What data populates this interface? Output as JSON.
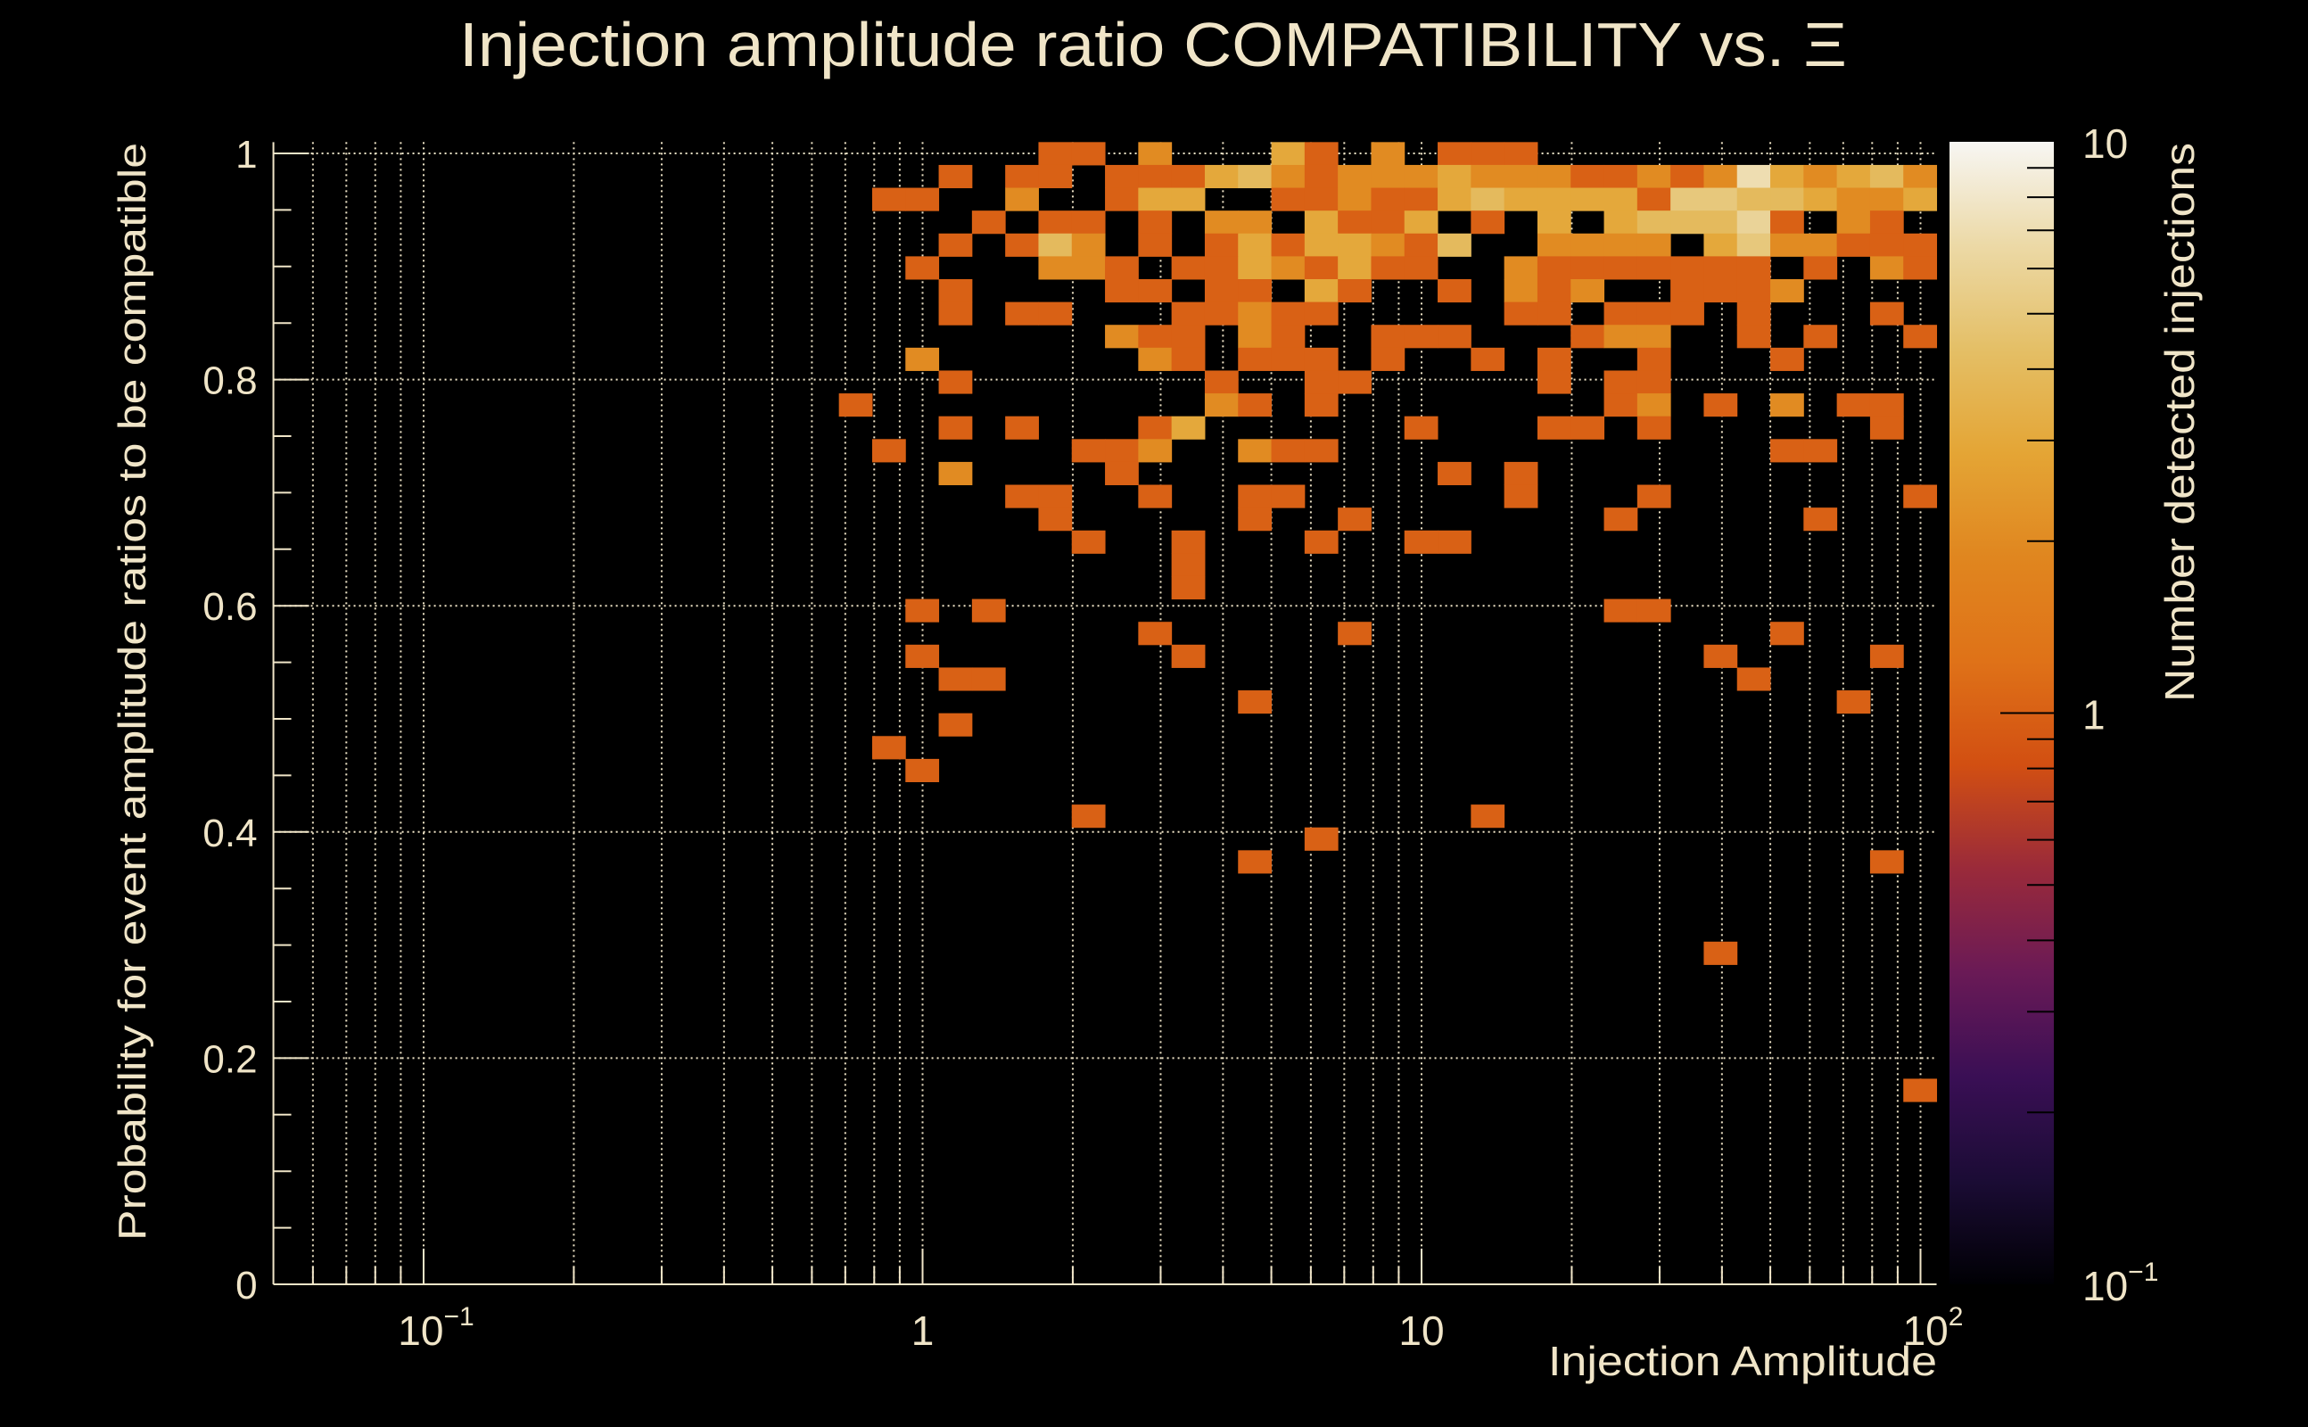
{
  "chart_data": {
    "type": "heatmap",
    "title": "Injection amplitude ratio COMPATIBILITY vs.  Ξ",
    "xlabel": "Injection Amplitude",
    "ylabel": "Probability for event amplitude ratios to be compatible",
    "zlabel": "Number detected injections",
    "x_scale": "log",
    "xlim": [
      0.05,
      107.7
    ],
    "ylim": [
      0,
      1.01
    ],
    "z_scale": "log",
    "zlim": [
      0.1,
      10
    ],
    "grid": true,
    "x_bins": {
      "count": 50,
      "min": 0.05,
      "max": 107.7,
      "spacing": "log"
    },
    "y_bins": {
      "count": 50,
      "min": 0,
      "max": 1.01,
      "spacing": "linear"
    },
    "x_ticks": [
      {
        "value": 0.1,
        "base": "10",
        "exp": "−1"
      },
      {
        "value": 1,
        "base": "1",
        "exp": ""
      },
      {
        "value": 10,
        "base": "10",
        "exp": ""
      },
      {
        "value": 100,
        "base": "10",
        "exp": "2"
      }
    ],
    "y_ticks": [
      {
        "value": 0,
        "label": "0"
      },
      {
        "value": 0.2,
        "label": "0.2"
      },
      {
        "value": 0.4,
        "label": "0.4"
      },
      {
        "value": 0.6,
        "label": "0.6"
      },
      {
        "value": 0.8,
        "label": "0.8"
      },
      {
        "value": 1,
        "label": "1"
      }
    ],
    "z_ticks": [
      {
        "value": 10,
        "base": "10",
        "exp": ""
      },
      {
        "value": 1,
        "base": "1",
        "exp": ""
      },
      {
        "value": 0.1,
        "base": "10",
        "exp": "−1"
      }
    ],
    "colormap": [
      "#000004",
      "#1b0c35",
      "#3a0f55",
      "#6a1a56",
      "#9a2a3a",
      "#d24f12",
      "#df7218",
      "#e0861f",
      "#e4a535",
      "#e4bf66",
      "#ecd9a6",
      "#f7f6f3"
    ],
    "cells_note": "rows indexed from top y-bin (row 0 = y 0.99-1.01); each entry [x_bin_index, count]",
    "rows": {
      "0": [
        [
          23,
          1
        ],
        [
          24,
          1
        ],
        [
          26,
          2
        ],
        [
          30,
          3
        ],
        [
          31,
          1
        ],
        [
          33,
          2
        ],
        [
          35,
          1
        ],
        [
          36,
          1
        ],
        [
          37,
          1
        ]
      ],
      "1": [
        [
          20,
          1
        ],
        [
          22,
          1
        ],
        [
          23,
          1
        ],
        [
          25,
          1
        ],
        [
          26,
          1
        ],
        [
          27,
          1
        ],
        [
          28,
          3
        ],
        [
          29,
          4
        ],
        [
          30,
          2
        ],
        [
          31,
          1
        ],
        [
          32,
          2
        ],
        [
          33,
          2
        ],
        [
          34,
          2
        ],
        [
          35,
          3
        ],
        [
          36,
          2
        ],
        [
          37,
          2
        ],
        [
          38,
          2
        ],
        [
          39,
          1
        ],
        [
          40,
          1
        ],
        [
          41,
          2
        ],
        [
          42,
          1
        ],
        [
          43,
          2
        ],
        [
          44,
          7
        ],
        [
          45,
          3
        ],
        [
          46,
          2
        ],
        [
          47,
          3
        ],
        [
          48,
          4
        ],
        [
          49,
          2
        ]
      ],
      "2": [
        [
          18,
          1
        ],
        [
          19,
          1
        ],
        [
          22,
          2
        ],
        [
          25,
          1
        ],
        [
          26,
          3
        ],
        [
          27,
          3
        ],
        [
          30,
          1
        ],
        [
          31,
          1
        ],
        [
          32,
          2
        ],
        [
          33,
          1
        ],
        [
          34,
          1
        ],
        [
          35,
          3
        ],
        [
          36,
          4
        ],
        [
          37,
          3
        ],
        [
          38,
          3
        ],
        [
          39,
          3
        ],
        [
          40,
          3
        ],
        [
          41,
          1
        ],
        [
          42,
          5
        ],
        [
          43,
          5
        ],
        [
          44,
          4
        ],
        [
          45,
          4
        ],
        [
          46,
          3
        ],
        [
          47,
          2
        ],
        [
          48,
          2
        ],
        [
          49,
          3
        ]
      ],
      "3": [
        [
          21,
          1
        ],
        [
          23,
          1
        ],
        [
          24,
          1
        ],
        [
          26,
          1
        ],
        [
          28,
          2
        ],
        [
          29,
          2
        ],
        [
          31,
          3
        ],
        [
          32,
          1
        ],
        [
          33,
          1
        ],
        [
          34,
          3
        ],
        [
          36,
          1
        ],
        [
          38,
          3
        ],
        [
          40,
          3
        ],
        [
          41,
          4
        ],
        [
          42,
          4
        ],
        [
          43,
          4
        ],
        [
          44,
          6
        ],
        [
          45,
          1
        ],
        [
          47,
          2
        ],
        [
          48,
          1
        ]
      ],
      "4": [
        [
          20,
          1
        ],
        [
          22,
          1
        ],
        [
          23,
          4
        ],
        [
          24,
          2
        ],
        [
          26,
          1
        ],
        [
          28,
          1
        ],
        [
          29,
          3
        ],
        [
          30,
          1
        ],
        [
          31,
          3
        ],
        [
          32,
          3
        ],
        [
          33,
          2
        ],
        [
          34,
          1
        ],
        [
          35,
          4
        ],
        [
          38,
          2
        ],
        [
          39,
          2
        ],
        [
          40,
          2
        ],
        [
          41,
          2
        ],
        [
          43,
          3
        ],
        [
          44,
          5
        ],
        [
          45,
          2
        ],
        [
          46,
          2
        ],
        [
          47,
          1
        ],
        [
          48,
          1
        ],
        [
          49,
          1
        ]
      ],
      "5": [
        [
          19,
          1
        ],
        [
          23,
          2
        ],
        [
          24,
          2
        ],
        [
          25,
          1
        ],
        [
          27,
          1
        ],
        [
          28,
          1
        ],
        [
          29,
          3
        ],
        [
          30,
          2
        ],
        [
          31,
          1
        ],
        [
          32,
          3
        ],
        [
          33,
          1
        ],
        [
          34,
          1
        ],
        [
          37,
          2
        ],
        [
          38,
          1
        ],
        [
          39,
          1
        ],
        [
          40,
          1
        ],
        [
          41,
          1
        ],
        [
          42,
          1
        ],
        [
          43,
          1
        ],
        [
          44,
          1
        ],
        [
          46,
          1
        ],
        [
          48,
          2
        ],
        [
          49,
          1
        ]
      ],
      "6": [
        [
          20,
          1
        ],
        [
          25,
          1
        ],
        [
          26,
          1
        ],
        [
          28,
          1
        ],
        [
          29,
          1
        ],
        [
          31,
          3
        ],
        [
          32,
          1
        ],
        [
          35,
          1
        ],
        [
          37,
          2
        ],
        [
          38,
          1
        ],
        [
          39,
          2
        ],
        [
          42,
          1
        ],
        [
          43,
          1
        ],
        [
          44,
          1
        ],
        [
          45,
          2
        ]
      ],
      "7": [
        [
          20,
          1
        ],
        [
          22,
          1
        ],
        [
          23,
          1
        ],
        [
          27,
          1
        ],
        [
          28,
          1
        ],
        [
          29,
          2
        ],
        [
          30,
          1
        ],
        [
          31,
          1
        ],
        [
          37,
          1
        ],
        [
          38,
          1
        ],
        [
          40,
          1
        ],
        [
          41,
          1
        ],
        [
          42,
          1
        ],
        [
          44,
          1
        ],
        [
          48,
          1
        ]
      ],
      "8": [
        [
          25,
          2
        ],
        [
          26,
          1
        ],
        [
          27,
          1
        ],
        [
          29,
          2
        ],
        [
          30,
          1
        ],
        [
          33,
          1
        ],
        [
          34,
          1
        ],
        [
          35,
          1
        ],
        [
          39,
          1
        ],
        [
          40,
          2
        ],
        [
          41,
          2
        ],
        [
          44,
          1
        ],
        [
          46,
          1
        ],
        [
          49,
          1
        ]
      ],
      "9": [
        [
          19,
          2
        ],
        [
          26,
          2
        ],
        [
          27,
          1
        ],
        [
          29,
          1
        ],
        [
          30,
          1
        ],
        [
          31,
          1
        ],
        [
          33,
          1
        ],
        [
          36,
          1
        ],
        [
          38,
          1
        ],
        [
          41,
          1
        ],
        [
          45,
          1
        ]
      ],
      "10": [
        [
          20,
          1
        ],
        [
          28,
          1
        ],
        [
          31,
          1
        ],
        [
          32,
          1
        ],
        [
          38,
          1
        ],
        [
          40,
          1
        ],
        [
          41,
          1
        ]
      ],
      "11": [
        [
          17,
          1
        ],
        [
          28,
          2
        ],
        [
          29,
          1
        ],
        [
          31,
          1
        ],
        [
          40,
          1
        ],
        [
          41,
          2
        ],
        [
          43,
          1
        ],
        [
          45,
          2
        ],
        [
          47,
          1
        ],
        [
          48,
          1
        ]
      ],
      "12": [
        [
          20,
          1
        ],
        [
          22,
          1
        ],
        [
          26,
          1
        ],
        [
          27,
          3
        ],
        [
          34,
          1
        ],
        [
          38,
          1
        ],
        [
          39,
          1
        ],
        [
          41,
          1
        ],
        [
          48,
          1
        ]
      ],
      "13": [
        [
          18,
          1
        ],
        [
          24,
          1
        ],
        [
          25,
          1
        ],
        [
          26,
          2
        ],
        [
          29,
          2
        ],
        [
          30,
          1
        ],
        [
          31,
          1
        ],
        [
          45,
          1
        ],
        [
          46,
          1
        ]
      ],
      "14": [
        [
          20,
          2
        ],
        [
          25,
          1
        ],
        [
          35,
          1
        ],
        [
          37,
          1
        ]
      ],
      "15": [
        [
          22,
          1
        ],
        [
          23,
          1
        ],
        [
          26,
          1
        ],
        [
          29,
          1
        ],
        [
          30,
          1
        ],
        [
          37,
          1
        ],
        [
          41,
          1
        ],
        [
          49,
          1
        ]
      ],
      "16": [
        [
          23,
          1
        ],
        [
          29,
          1
        ],
        [
          32,
          1
        ],
        [
          40,
          1
        ],
        [
          46,
          1
        ]
      ],
      "17": [
        [
          24,
          1
        ],
        [
          27,
          1
        ],
        [
          31,
          1
        ],
        [
          34,
          1
        ],
        [
          35,
          1
        ]
      ],
      "18": [
        [
          27,
          1
        ]
      ],
      "19": [
        [
          27,
          1
        ]
      ],
      "20": [
        [
          19,
          1
        ],
        [
          21,
          1
        ],
        [
          40,
          1
        ],
        [
          41,
          1
        ]
      ],
      "21": [
        [
          26,
          1
        ],
        [
          32,
          1
        ],
        [
          45,
          1
        ]
      ],
      "22": [
        [
          19,
          1
        ],
        [
          27,
          1
        ],
        [
          43,
          1
        ],
        [
          48,
          1
        ]
      ],
      "23": [
        [
          20,
          1
        ],
        [
          21,
          1
        ],
        [
          44,
          1
        ]
      ],
      "24": [
        [
          29,
          1
        ],
        [
          47,
          1
        ]
      ],
      "25": [
        [
          20,
          1
        ]
      ],
      "26": [
        [
          18,
          1
        ]
      ],
      "27": [
        [
          19,
          1
        ]
      ],
      "29": [
        [
          24,
          1
        ],
        [
          36,
          1
        ]
      ],
      "30": [
        [
          31,
          1
        ]
      ],
      "31": [
        [
          29,
          1
        ],
        [
          48,
          1
        ]
      ],
      "35": [
        [
          43,
          1
        ]
      ],
      "41": [
        [
          49,
          1
        ]
      ]
    }
  }
}
